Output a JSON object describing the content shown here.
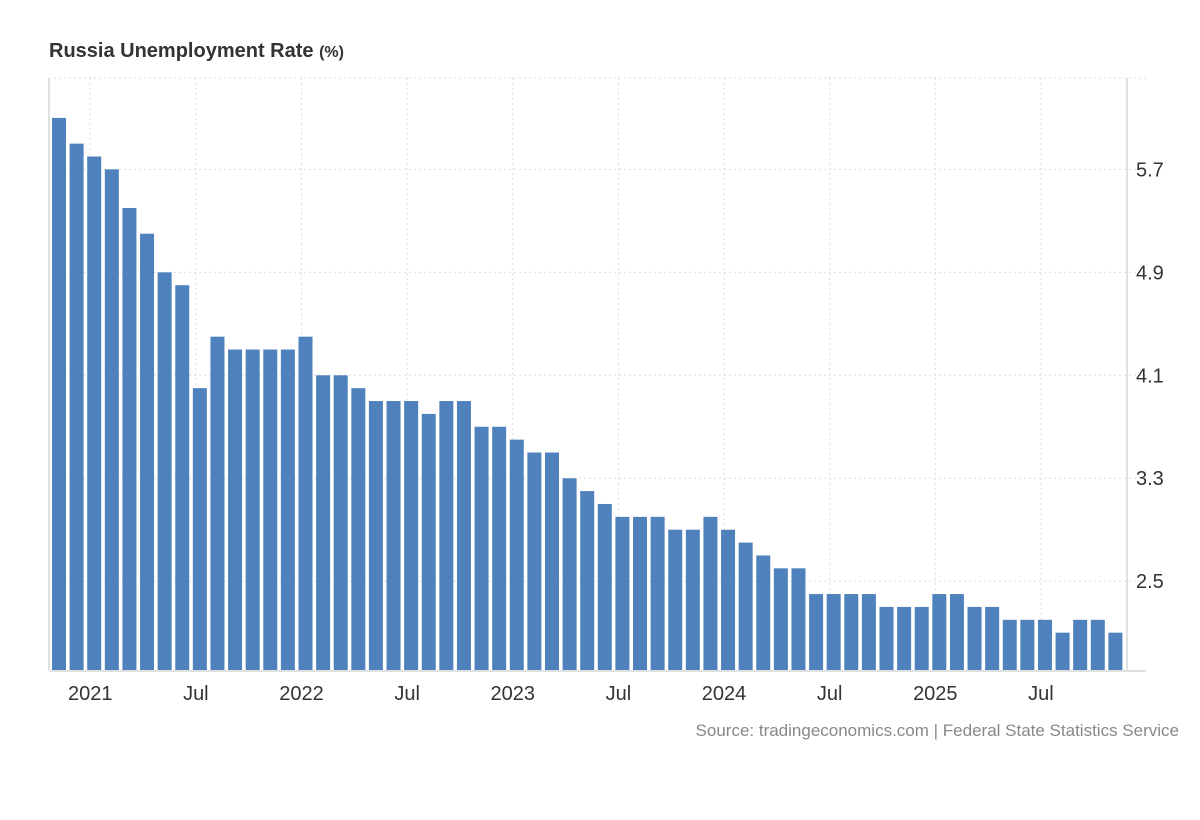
{
  "title": "Russia Unemployment Rate",
  "unit": "(%)",
  "source": "Source: tradingeconomics.com | Federal State Statistics Service",
  "colors": {
    "bar": "#4f81bd",
    "grid": "#dddddd",
    "axis_text": "#333333",
    "source_text": "#888888"
  },
  "chart_data": {
    "type": "bar",
    "title": "Russia Unemployment Rate (%)",
    "xlabel": "",
    "ylabel": "",
    "start_month": "2020-11",
    "values": [
      6.1,
      5.9,
      5.8,
      5.7,
      5.4,
      5.2,
      4.9,
      4.8,
      4.0,
      4.4,
      4.3,
      4.3,
      4.3,
      4.3,
      4.4,
      4.1,
      4.1,
      4.0,
      3.9,
      3.9,
      3.9,
      3.8,
      3.9,
      3.9,
      3.7,
      3.7,
      3.6,
      3.5,
      3.5,
      3.3,
      3.2,
      3.1,
      3.0,
      3.0,
      3.0,
      2.9,
      2.9,
      3.0,
      2.9,
      2.8,
      2.7,
      2.6,
      2.6,
      2.4,
      2.4,
      2.4,
      2.4,
      2.3,
      2.3,
      2.3,
      2.4,
      2.4,
      2.3,
      2.3,
      2.2,
      2.2,
      2.2,
      2.1,
      2.2,
      2.2,
      2.1
    ],
    "ylim": [
      1.81,
      6.41
    ],
    "yticks": [
      "5.7",
      "4.9",
      "4.1",
      "3.3",
      "2.5"
    ],
    "xticks": [
      {
        "label": "2021",
        "index": 2
      },
      {
        "label": "Jul",
        "index": 8
      },
      {
        "label": "2022",
        "index": 14
      },
      {
        "label": "Jul",
        "index": 20
      },
      {
        "label": "2023",
        "index": 26
      },
      {
        "label": "Jul",
        "index": 32
      },
      {
        "label": "2024",
        "index": 38
      },
      {
        "label": "Jul",
        "index": 44
      },
      {
        "label": "2025",
        "index": 50
      },
      {
        "label": "Jul",
        "index": 56
      }
    ],
    "grid": true,
    "y_axis_side": "right"
  }
}
